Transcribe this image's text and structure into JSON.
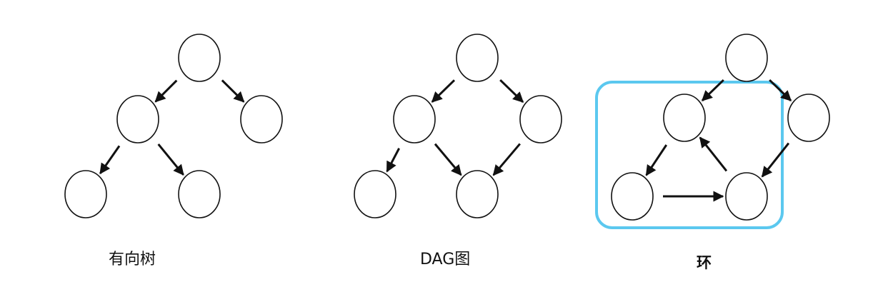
{
  "diagrams": [
    {
      "id": "tree",
      "caption": "有向树",
      "nodes": [
        "t0",
        "t1",
        "t2",
        "t3",
        "t4"
      ],
      "edges": [
        [
          "t0",
          "t1"
        ],
        [
          "t0",
          "t2"
        ],
        [
          "t1",
          "t3"
        ],
        [
          "t1",
          "t4"
        ]
      ]
    },
    {
      "id": "dag",
      "caption": "DAG图",
      "nodes": [
        "d0",
        "d1",
        "d2",
        "d3",
        "d4"
      ],
      "edges": [
        [
          "d0",
          "d1"
        ],
        [
          "d0",
          "d2"
        ],
        [
          "d1",
          "d3"
        ],
        [
          "d1",
          "d4"
        ],
        [
          "d2",
          "d4"
        ]
      ]
    },
    {
      "id": "cycle",
      "caption": "环",
      "nodes": [
        "c0",
        "c1",
        "c2",
        "c3",
        "c4"
      ],
      "edges": [
        [
          "c0",
          "c1"
        ],
        [
          "c0",
          "c2"
        ],
        [
          "c1",
          "c3"
        ],
        [
          "c3",
          "c4"
        ],
        [
          "c4",
          "c1"
        ],
        [
          "c2",
          "c4"
        ]
      ],
      "highlight": {
        "nodes": [
          "c1",
          "c3",
          "c4"
        ],
        "color": "#5bc8ef"
      }
    }
  ],
  "colors": {
    "stroke": "#111111",
    "node_fill": "#ffffff"
  }
}
